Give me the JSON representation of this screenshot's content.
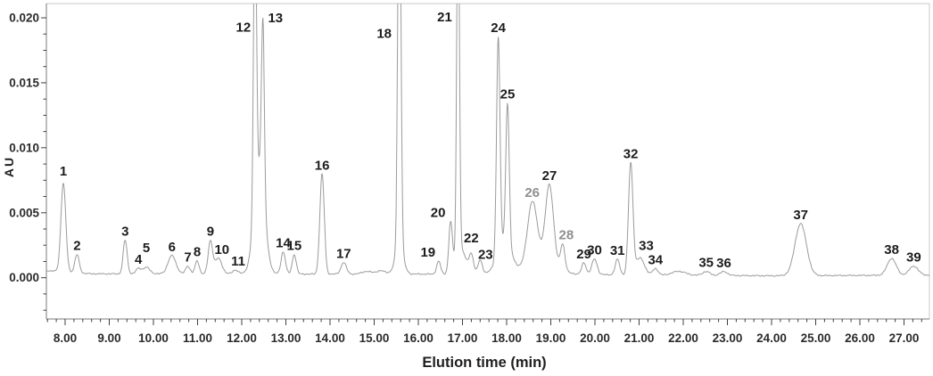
{
  "chart_data": {
    "type": "line",
    "title": "",
    "xlabel": "Elution time (min)",
    "ylabel": "AU",
    "xlim": [
      7.576,
      27.576
    ],
    "ylim": [
      -0.0032,
      0.0211
    ],
    "grid": false,
    "legend": null,
    "x_major_ticks": [
      8,
      9,
      10,
      11,
      12,
      13,
      14,
      15,
      16,
      17,
      18,
      19,
      20,
      21,
      22,
      23,
      24,
      25,
      26,
      27
    ],
    "x_tick_labels": [
      "8.00",
      "9.00",
      "10.00",
      "11.00",
      "12.00",
      "13.00",
      "14.00",
      "15.00",
      "16.00",
      "17.00",
      "18.00",
      "19.00",
      "20.00",
      "21.00",
      "22.00",
      "23.00",
      "24.00",
      "25.00",
      "26.00",
      "27.00"
    ],
    "x_minor_step": 0.2,
    "y_major_ticks": [
      0.0,
      0.005,
      0.01,
      0.015,
      0.02
    ],
    "y_tick_labels": [
      "0.000",
      "0.005",
      "0.010",
      "0.015",
      "0.020"
    ],
    "y_minor_step": 0.00125,
    "units": {
      "x": "min",
      "y": "AU"
    },
    "peaks": [
      {
        "n": 1,
        "t": 7.96,
        "au": 0.0073,
        "g": 0.0068,
        "sigma": 0.055,
        "dy": -4
      },
      {
        "n": 2,
        "t": 8.27,
        "au": 0.0019,
        "g": 0.0014,
        "sigma": 0.05
      },
      {
        "n": 3,
        "t": 9.36,
        "au": 0.003,
        "g": 0.0026,
        "sigma": 0.045
      },
      {
        "n": 4,
        "t": 9.66,
        "au": 0.0008,
        "g": 0.0004,
        "sigma": 0.055
      },
      {
        "n": 5,
        "t": 9.84,
        "au": 0.0009,
        "g": 0.0005,
        "sigma": 0.08,
        "dy": -12
      },
      {
        "n": 6,
        "t": 10.42,
        "au": 0.0018,
        "g": 0.0014,
        "sigma": 0.09
      },
      {
        "n": 7,
        "t": 10.78,
        "au": 0.001,
        "g": 0.0006,
        "sigma": 0.05
      },
      {
        "n": 8,
        "t": 10.99,
        "au": 0.0014,
        "g": 0.001,
        "sigma": 0.045
      },
      {
        "n": 9,
        "t": 11.29,
        "au": 0.003,
        "g": 0.0025,
        "sigma": 0.05
      },
      {
        "n": 10,
        "t": 11.47,
        "au": 0.0015,
        "g": 0.0012,
        "sigma": 0.08,
        "dx": 4
      },
      {
        "n": 11,
        "t": 11.86,
        "au": 0.0006,
        "g": 0.0003,
        "sigma": 0.06,
        "dx": 3
      },
      {
        "n": 12,
        "t": 12.3,
        "au": null,
        "offscale": true,
        "g": 0.0239,
        "sigma": 0.033,
        "dx": -13,
        "lv": 0.0186
      },
      {
        "n": 13,
        "t": 12.48,
        "au": 0.02,
        "g": 0.0131,
        "sigma": 0.033,
        "dx": 14,
        "lv": 0.0193
      },
      {
        "n": 14,
        "t": 12.94,
        "au": 0.0022,
        "g": 0.0017,
        "sigma": 0.05
      },
      {
        "n": 15,
        "t": 13.19,
        "au": 0.0019,
        "g": 0.0015,
        "sigma": 0.045
      },
      {
        "n": 16,
        "t": 13.82,
        "au": 0.0081,
        "g": 0.0077,
        "sigma": 0.05
      },
      {
        "n": 17,
        "t": 14.31,
        "au": 0.0013,
        "g": 0.0009,
        "sigma": 0.06
      },
      {
        "n": 18,
        "t": 15.57,
        "au": null,
        "offscale": true,
        "g": 0.032,
        "sigma": 0.035,
        "dx": -17,
        "lv": 0.0181
      },
      {
        "n": 19,
        "t": 16.46,
        "au": 0.0014,
        "g": 0.001,
        "sigma": 0.045,
        "dx": -12
      },
      {
        "n": 20,
        "t": 16.73,
        "au": 0.0043,
        "g": 0.0037,
        "sigma": 0.04,
        "dx": -14
      },
      {
        "n": 21,
        "t": 16.9,
        "au": null,
        "offscale": true,
        "g": 0.03,
        "sigma": 0.03,
        "dx": -15,
        "lv": 0.0194
      },
      {
        "n": 22,
        "t": 17.2,
        "au": 0.0019,
        "g": 0.0014,
        "sigma": 0.05,
        "dy": -7
      },
      {
        "n": 23,
        "t": 17.4,
        "au": 0.0016,
        "g": 0.0011,
        "sigma": 0.05,
        "dx": 6,
        "dy": 4
      },
      {
        "n": 24,
        "t": 17.81,
        "au": 0.0186,
        "g": 0.0165,
        "sigma": 0.038
      },
      {
        "n": 25,
        "t": 18.02,
        "au": 0.0135,
        "g": 0.0108,
        "sigma": 0.038
      },
      {
        "n": 26,
        "t": 18.58,
        "au": 0.0059,
        "g": 0.0047,
        "sigma": 0.11,
        "muted": true
      },
      {
        "n": 27,
        "t": 18.97,
        "au": 0.0072,
        "g": 0.0059,
        "sigma": 0.09
      },
      {
        "n": 28,
        "t": 19.27,
        "au": 0.0027,
        "g": 0.002,
        "sigma": 0.05,
        "muted": true,
        "dx": 4
      },
      {
        "n": 29,
        "t": 19.75,
        "au": 0.0013,
        "g": 0.0009,
        "sigma": 0.05
      },
      {
        "n": 30,
        "t": 19.99,
        "au": 0.0016,
        "g": 0.0012,
        "sigma": 0.06
      },
      {
        "n": 31,
        "t": 20.51,
        "au": 0.0016,
        "g": 0.0012,
        "sigma": 0.05
      },
      {
        "n": 32,
        "t": 20.81,
        "au": 0.0088,
        "g": 0.0085,
        "sigma": 0.05
      },
      {
        "n": 33,
        "t": 21.02,
        "au": 0.0021,
        "g": 0.0013,
        "sigma": 0.1,
        "dx": 7,
        "dy": -4
      },
      {
        "n": 34,
        "t": 21.37,
        "au": 0.0009,
        "g": 0.0005,
        "sigma": 0.06
      },
      {
        "n": 35,
        "t": 22.52,
        "au": 0.0006,
        "g": 0.0003,
        "sigma": 0.08
      },
      {
        "n": 36,
        "t": 22.92,
        "au": 0.0006,
        "g": 0.0003,
        "sigma": 0.08
      },
      {
        "n": 37,
        "t": 24.66,
        "au": 0.0043,
        "g": 0.004,
        "sigma": 0.13
      },
      {
        "n": 38,
        "t": 26.72,
        "au": 0.0017,
        "g": 0.0013,
        "sigma": 0.1
      },
      {
        "n": 39,
        "t": 27.22,
        "au": 0.0011,
        "g": 0.0007,
        "sigma": 0.1
      }
    ],
    "shape_bumps": [
      {
        "t": 12.4,
        "g": 0.0082,
        "sigma": 0.12
      },
      {
        "t": 14.82,
        "g": 0.0002,
        "sigma": 0.1
      },
      {
        "t": 15.15,
        "g": 0.00025,
        "sigma": 0.12
      },
      {
        "t": 15.57,
        "g": 0.0022,
        "sigma": 0.09
      },
      {
        "t": 16.95,
        "g": 0.002,
        "sigma": 0.12
      },
      {
        "t": 17.95,
        "g": 0.0026,
        "sigma": 0.16
      },
      {
        "t": 18.8,
        "g": 0.0012,
        "sigma": 0.3
      },
      {
        "t": 21.9,
        "g": 0.0003,
        "sigma": 0.15
      }
    ],
    "baseline": [
      [
        7.576,
        0.00055
      ],
      [
        8.6,
        0.0003
      ],
      [
        12.0,
        0.0003
      ],
      [
        13.5,
        0.00028
      ],
      [
        16.0,
        0.00028
      ],
      [
        19.6,
        0.00025
      ],
      [
        21.6,
        0.0002
      ],
      [
        24.0,
        0.00015
      ],
      [
        27.576,
        0.0002
      ]
    ],
    "noise_amp": 6e-05,
    "colors": {
      "trace": "#9b9b9b",
      "frame": "#c9c9c9",
      "axis": "#7a7a7a",
      "tick": "#3f3f3f",
      "tick_text": "#2b2b2b",
      "peak_label": "#1c1c1c",
      "peak_label_muted": "#8f8f8f",
      "background": "#ffffff"
    }
  }
}
